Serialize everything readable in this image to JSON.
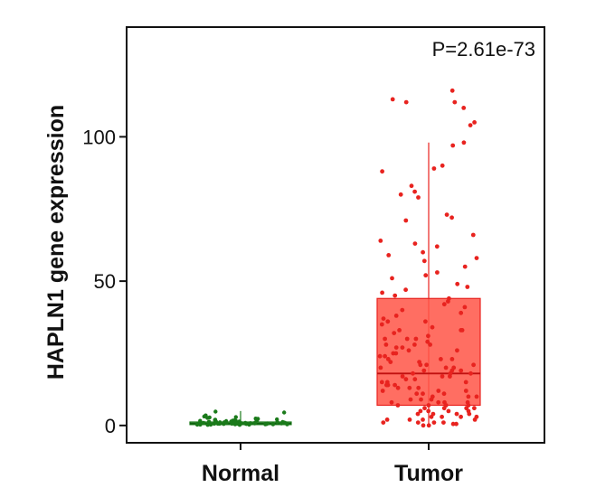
{
  "chart_data": {
    "type": "box",
    "title": "",
    "xlabel": "",
    "ylabel": "HAPLN1 gene expression",
    "annotation": "P=2.61e-73",
    "ylim": [
      -6,
      138
    ],
    "yticks": [
      0,
      50,
      100
    ],
    "categories": [
      "Normal",
      "Tumor"
    ],
    "series": [
      {
        "category": "Normal",
        "color": "#1a7a1a",
        "box": {
          "min": 0,
          "q1": 0.3,
          "median": 0.7,
          "q3": 1.2,
          "max": 5
        },
        "points": [
          0.2,
          0.5,
          0.9,
          1.3,
          0.4,
          0.8,
          1.6,
          2.1,
          0.3,
          0.6,
          1.1,
          0.7,
          2.4,
          1.0,
          0.5,
          0.9,
          1.8,
          0.2,
          0.6,
          1.4,
          2.8,
          0.4,
          1.2,
          0.8,
          3.1,
          0.5,
          1.0,
          0.3,
          1.7,
          0.9,
          2.2,
          0.6,
          1.3,
          0.4,
          0.8,
          1.9,
          0.7,
          1.1,
          2.6,
          0.5,
          0.9,
          1.5,
          0.3,
          0.7,
          4.8,
          1.2,
          0.6,
          2.0,
          0.8,
          1.4,
          0.4,
          1.0,
          3.5,
          0.6,
          1.6,
          0.9,
          0.3,
          1.3,
          2.3,
          0.7,
          4.5,
          0.5,
          1.1,
          0.8,
          1.8,
          0.4,
          2.9,
          1.0,
          0.6,
          1.5
        ]
      },
      {
        "category": "Tumor",
        "color": "#e8231f",
        "box": {
          "min": 0,
          "q1": 7,
          "median": 18,
          "q3": 44,
          "max": 98
        },
        "points": [
          116,
          113,
          112,
          112,
          110,
          105,
          104,
          98,
          97,
          90,
          89,
          88,
          83,
          81,
          80,
          79,
          73,
          72,
          71,
          66,
          64,
          63,
          62,
          60,
          59,
          58,
          57,
          55,
          53,
          52,
          51,
          49,
          48,
          47,
          46,
          45,
          44,
          43,
          42,
          41,
          40,
          39,
          38,
          37,
          36,
          35,
          34,
          33,
          33,
          32,
          31,
          30,
          30,
          29,
          28,
          28,
          27,
          26,
          26,
          25,
          25,
          24,
          23,
          23,
          22,
          22,
          21,
          21,
          20,
          20,
          19,
          19,
          18,
          18,
          17,
          17,
          16,
          16,
          15,
          15,
          14,
          14,
          13,
          13,
          12,
          12,
          11,
          11,
          10,
          10,
          9,
          9,
          8,
          8,
          8,
          7,
          7,
          7,
          6,
          6,
          6,
          5,
          5,
          5,
          4,
          4,
          4,
          3,
          3,
          3,
          2,
          2,
          2,
          1,
          1,
          1,
          0.5,
          0.5,
          0,
          0,
          12,
          18,
          24,
          30,
          36,
          10,
          6,
          14,
          20,
          27,
          33,
          3,
          9,
          15,
          21,
          28,
          1,
          4,
          7,
          11,
          17,
          23,
          2,
          5,
          8,
          13,
          19
        ]
      }
    ]
  }
}
